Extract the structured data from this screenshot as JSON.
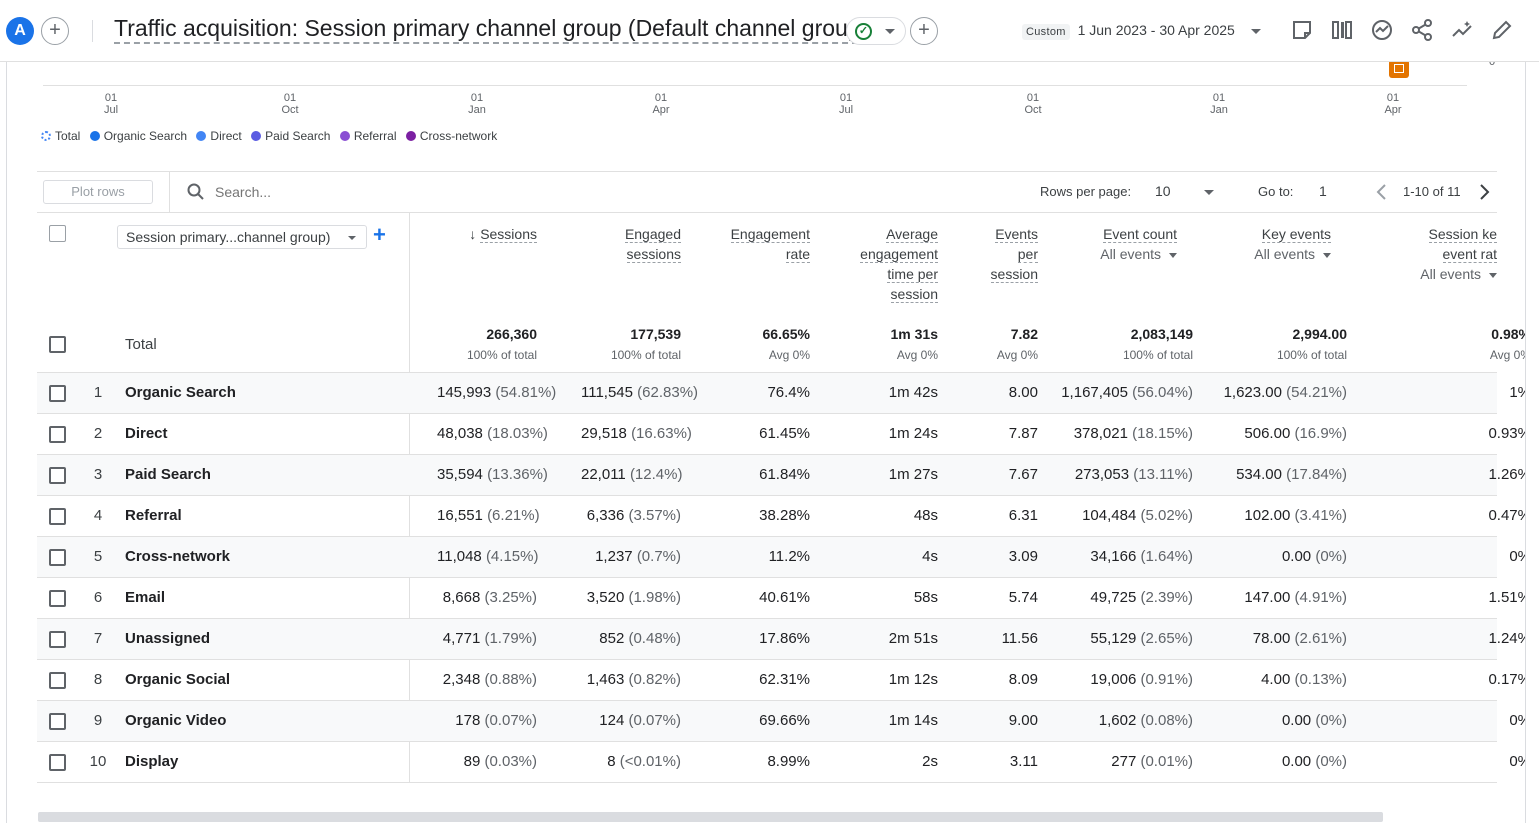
{
  "header": {
    "avatar_letter": "A",
    "title": "Traffic acquisition: Session primary channel group (Default channel group)",
    "date_chip": "Custom",
    "date_range": "1 Jun 2023 - 30 Apr 2025"
  },
  "chart": {
    "y_min_label": "0",
    "x_ticks": [
      {
        "day": "01",
        "month": "Jul"
      },
      {
        "day": "01",
        "month": "Oct"
      },
      {
        "day": "01",
        "month": "Jan"
      },
      {
        "day": "01",
        "month": "Apr"
      },
      {
        "day": "01",
        "month": "Jul"
      },
      {
        "day": "01",
        "month": "Oct"
      },
      {
        "day": "01",
        "month": "Jan"
      },
      {
        "day": "01",
        "month": "Apr"
      }
    ],
    "legend": [
      {
        "label": "Total",
        "color": "#4285f4"
      },
      {
        "label": "Organic Search",
        "color": "#1a73e8"
      },
      {
        "label": "Direct",
        "color": "#4285f4"
      },
      {
        "label": "Paid Search",
        "color": "#5b5ce2"
      },
      {
        "label": "Referral",
        "color": "#8a4fd3"
      },
      {
        "label": "Cross-network",
        "color": "#7b1fa2"
      }
    ]
  },
  "toolbar": {
    "plot_rows": "Plot rows",
    "search_placeholder": "Search...",
    "rows_per_page_label": "Rows per page:",
    "rows_per_page": "10",
    "goto_label": "Go to:",
    "goto_value": "1",
    "pagination": "1-10 of 11"
  },
  "table": {
    "dimension": "Session primary...channel group)",
    "columns": [
      {
        "lines": [
          "Sessions"
        ],
        "sub": ""
      },
      {
        "lines": [
          "Engaged",
          "sessions"
        ],
        "sub": ""
      },
      {
        "lines": [
          "Engagement",
          "rate"
        ],
        "sub": ""
      },
      {
        "lines": [
          "Average",
          "engagement",
          "time per",
          "session"
        ],
        "sub": ""
      },
      {
        "lines": [
          "Events",
          "per",
          "session"
        ],
        "sub": ""
      },
      {
        "lines": [
          "Event count"
        ],
        "sub": "All events"
      },
      {
        "lines": [
          "Key events"
        ],
        "sub": "All events"
      },
      {
        "lines": [
          "Session ke",
          "event rat"
        ],
        "sub": "All events"
      }
    ],
    "total": {
      "label": "Total",
      "values": [
        "266,360",
        "177,539",
        "66.65%",
        "1m 31s",
        "7.82",
        "2,083,149",
        "2,994.00",
        "0.98%"
      ],
      "subs": [
        "100% of total",
        "100% of total",
        "Avg 0%",
        "Avg 0%",
        "Avg 0%",
        "100% of total",
        "100% of total",
        "Avg 0%"
      ]
    },
    "rows": [
      {
        "idx": "1",
        "name": "Organic Search",
        "cells": [
          [
            "145,993",
            "(54.81%)"
          ],
          [
            "111,545",
            "(62.83%)"
          ],
          [
            "76.4%",
            ""
          ],
          [
            "1m 42s",
            ""
          ],
          [
            "8.00",
            ""
          ],
          [
            "1,167,405",
            "(56.04%)"
          ],
          [
            "1,623.00",
            "(54.21%)"
          ],
          [
            "1%",
            ""
          ]
        ]
      },
      {
        "idx": "2",
        "name": "Direct",
        "cells": [
          [
            "48,038",
            "(18.03%)"
          ],
          [
            "29,518",
            "(16.63%)"
          ],
          [
            "61.45%",
            ""
          ],
          [
            "1m 24s",
            ""
          ],
          [
            "7.87",
            ""
          ],
          [
            "378,021",
            "(18.15%)"
          ],
          [
            "506.00",
            "(16.9%)"
          ],
          [
            "0.93%",
            ""
          ]
        ]
      },
      {
        "idx": "3",
        "name": "Paid Search",
        "cells": [
          [
            "35,594",
            "(13.36%)"
          ],
          [
            "22,011",
            "(12.4%)"
          ],
          [
            "61.84%",
            ""
          ],
          [
            "1m 27s",
            ""
          ],
          [
            "7.67",
            ""
          ],
          [
            "273,053",
            "(13.11%)"
          ],
          [
            "534.00",
            "(17.84%)"
          ],
          [
            "1.26%",
            ""
          ]
        ]
      },
      {
        "idx": "4",
        "name": "Referral",
        "cells": [
          [
            "16,551",
            "(6.21%)"
          ],
          [
            "6,336",
            "(3.57%)"
          ],
          [
            "38.28%",
            ""
          ],
          [
            "48s",
            ""
          ],
          [
            "6.31",
            ""
          ],
          [
            "104,484",
            "(5.02%)"
          ],
          [
            "102.00",
            "(3.41%)"
          ],
          [
            "0.47%",
            ""
          ]
        ]
      },
      {
        "idx": "5",
        "name": "Cross-network",
        "cells": [
          [
            "11,048",
            "(4.15%)"
          ],
          [
            "1,237",
            "(0.7%)"
          ],
          [
            "11.2%",
            ""
          ],
          [
            "4s",
            ""
          ],
          [
            "3.09",
            ""
          ],
          [
            "34,166",
            "(1.64%)"
          ],
          [
            "0.00",
            "(0%)"
          ],
          [
            "0%",
            ""
          ]
        ]
      },
      {
        "idx": "6",
        "name": "Email",
        "cells": [
          [
            "8,668",
            "(3.25%)"
          ],
          [
            "3,520",
            "(1.98%)"
          ],
          [
            "40.61%",
            ""
          ],
          [
            "58s",
            ""
          ],
          [
            "5.74",
            ""
          ],
          [
            "49,725",
            "(2.39%)"
          ],
          [
            "147.00",
            "(4.91%)"
          ],
          [
            "1.51%",
            ""
          ]
        ]
      },
      {
        "idx": "7",
        "name": "Unassigned",
        "cells": [
          [
            "4,771",
            "(1.79%)"
          ],
          [
            "852",
            "(0.48%)"
          ],
          [
            "17.86%",
            ""
          ],
          [
            "2m 51s",
            ""
          ],
          [
            "11.56",
            ""
          ],
          [
            "55,129",
            "(2.65%)"
          ],
          [
            "78.00",
            "(2.61%)"
          ],
          [
            "1.24%",
            ""
          ]
        ]
      },
      {
        "idx": "8",
        "name": "Organic Social",
        "cells": [
          [
            "2,348",
            "(0.88%)"
          ],
          [
            "1,463",
            "(0.82%)"
          ],
          [
            "62.31%",
            ""
          ],
          [
            "1m 12s",
            ""
          ],
          [
            "8.09",
            ""
          ],
          [
            "19,006",
            "(0.91%)"
          ],
          [
            "4.00",
            "(0.13%)"
          ],
          [
            "0.17%",
            ""
          ]
        ]
      },
      {
        "idx": "9",
        "name": "Organic Video",
        "cells": [
          [
            "178",
            "(0.07%)"
          ],
          [
            "124",
            "(0.07%)"
          ],
          [
            "69.66%",
            ""
          ],
          [
            "1m 14s",
            ""
          ],
          [
            "9.00",
            ""
          ],
          [
            "1,602",
            "(0.08%)"
          ],
          [
            "0.00",
            "(0%)"
          ],
          [
            "0%",
            ""
          ]
        ]
      },
      {
        "idx": "10",
        "name": "Display",
        "cells": [
          [
            "89",
            "(0.03%)"
          ],
          [
            "8",
            "(<0.01%)"
          ],
          [
            "8.99%",
            ""
          ],
          [
            "2s",
            ""
          ],
          [
            "3.11",
            ""
          ],
          [
            "277",
            "(0.01%)"
          ],
          [
            "0.00",
            "(0%)"
          ],
          [
            "0%",
            ""
          ]
        ]
      }
    ]
  }
}
